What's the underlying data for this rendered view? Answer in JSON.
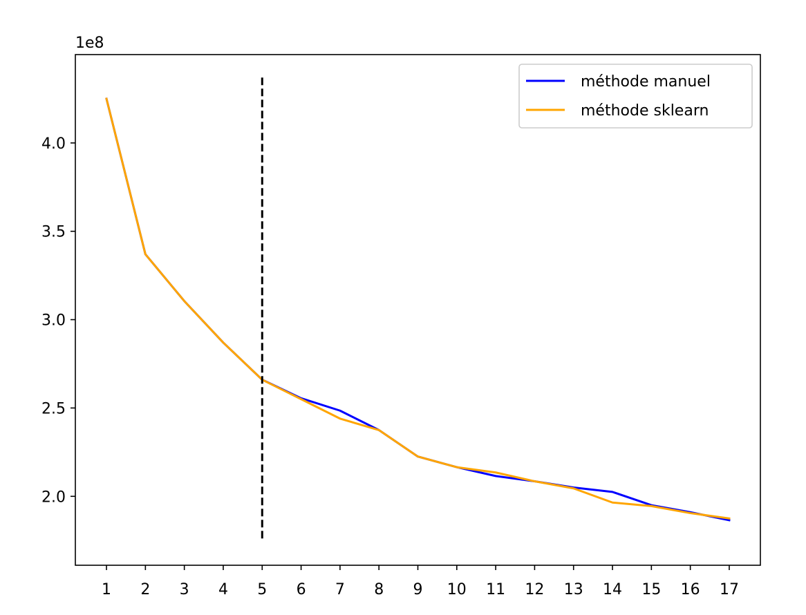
{
  "chart_data": {
    "type": "line",
    "title": "",
    "xlabel": "",
    "ylabel": "",
    "y_offset_label": "1e8",
    "x": [
      1,
      2,
      3,
      4,
      5,
      6,
      7,
      8,
      9,
      10,
      11,
      12,
      13,
      14,
      15,
      16,
      17
    ],
    "x_ticks": [
      "1",
      "2",
      "3",
      "4",
      "5",
      "6",
      "7",
      "8",
      "9",
      "10",
      "11",
      "12",
      "13",
      "14",
      "15",
      "16",
      "17"
    ],
    "y_ticks": [
      "2.0",
      "2.5",
      "3.0",
      "3.5",
      "4.0"
    ],
    "y_tick_values": [
      2.0,
      2.5,
      3.0,
      3.5,
      4.0
    ],
    "xlim": [
      0.2,
      17.8
    ],
    "ylim": [
      1.61,
      4.5
    ],
    "grid": false,
    "legend_position": "upper right",
    "series": [
      {
        "name": "méthode manuel",
        "color": "#0000ff",
        "values": [
          4.25,
          3.37,
          3.105,
          2.87,
          2.66,
          2.555,
          2.485,
          2.375,
          2.225,
          2.165,
          2.115,
          2.085,
          2.05,
          2.025,
          1.95,
          1.91,
          1.865
        ]
      },
      {
        "name": "méthode sklearn",
        "color": "#ffa500",
        "values": [
          4.25,
          3.37,
          3.105,
          2.87,
          2.66,
          2.55,
          2.44,
          2.375,
          2.225,
          2.165,
          2.135,
          2.085,
          2.045,
          1.965,
          1.945,
          1.905,
          1.875
        ]
      }
    ],
    "vline": {
      "x": 5,
      "ymin": 1.75,
      "ymax": 4.37,
      "color": "#000000",
      "style": "dashed"
    }
  }
}
